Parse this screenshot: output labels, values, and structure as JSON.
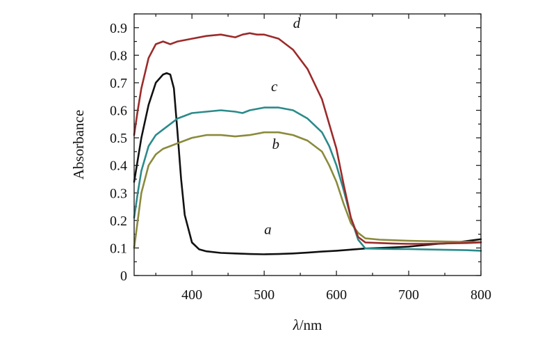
{
  "chart_data": {
    "type": "line",
    "xlabel_symbol": "λ",
    "xlabel_unit": "/nm",
    "ylabel": "Absorbance",
    "xlim": [
      320,
      800
    ],
    "ylim": [
      0,
      0.95
    ],
    "xticks": [
      400,
      500,
      600,
      700,
      800
    ],
    "xtick_labels": [
      "400",
      "500",
      "600",
      "700",
      "800"
    ],
    "yticks": [
      0,
      0.1,
      0.2,
      0.3,
      0.4,
      0.5,
      0.6,
      0.7,
      0.8,
      0.9
    ],
    "ytick_labels": [
      "0",
      "0.1",
      "0.2",
      "0.3",
      "0.4",
      "0.5",
      "0.6",
      "0.7",
      "0.8",
      "0.9"
    ],
    "series": [
      {
        "name": "a",
        "color": "#111111",
        "x": [
          320,
          330,
          340,
          350,
          360,
          365,
          370,
          375,
          380,
          385,
          390,
          400,
          410,
          420,
          440,
          460,
          480,
          500,
          520,
          540,
          560,
          580,
          600,
          620,
          640,
          660,
          680,
          700,
          720,
          740,
          760,
          780,
          800
        ],
        "y": [
          0.34,
          0.5,
          0.62,
          0.7,
          0.73,
          0.735,
          0.73,
          0.68,
          0.52,
          0.35,
          0.22,
          0.12,
          0.095,
          0.088,
          0.082,
          0.08,
          0.078,
          0.077,
          0.078,
          0.08,
          0.083,
          0.087,
          0.09,
          0.094,
          0.098,
          0.1,
          0.102,
          0.105,
          0.11,
          0.115,
          0.118,
          0.125,
          0.132
        ]
      },
      {
        "name": "b",
        "color": "#8a8a3c",
        "x": [
          320,
          325,
          330,
          340,
          350,
          360,
          370,
          380,
          400,
          420,
          440,
          460,
          480,
          500,
          520,
          540,
          560,
          580,
          590,
          600,
          610,
          620,
          630,
          640,
          660,
          680,
          700,
          720,
          740,
          760,
          780,
          800
        ],
        "y": [
          0.1,
          0.2,
          0.3,
          0.4,
          0.44,
          0.46,
          0.47,
          0.48,
          0.5,
          0.51,
          0.51,
          0.505,
          0.51,
          0.52,
          0.52,
          0.51,
          0.49,
          0.45,
          0.4,
          0.34,
          0.26,
          0.19,
          0.155,
          0.135,
          0.13,
          0.128,
          0.126,
          0.125,
          0.124,
          0.123,
          0.122,
          0.121
        ]
      },
      {
        "name": "c",
        "color": "#2b8a8a",
        "x": [
          320,
          325,
          330,
          340,
          350,
          360,
          370,
          380,
          400,
          420,
          440,
          460,
          470,
          480,
          500,
          520,
          540,
          560,
          580,
          590,
          600,
          610,
          620,
          630,
          640,
          660,
          680,
          700,
          720,
          740,
          760,
          780,
          800
        ],
        "y": [
          0.21,
          0.3,
          0.38,
          0.47,
          0.51,
          0.53,
          0.55,
          0.57,
          0.59,
          0.595,
          0.6,
          0.595,
          0.59,
          0.6,
          0.61,
          0.61,
          0.6,
          0.57,
          0.52,
          0.47,
          0.4,
          0.31,
          0.21,
          0.13,
          0.098,
          0.097,
          0.096,
          0.096,
          0.095,
          0.094,
          0.093,
          0.092,
          0.09
        ]
      },
      {
        "name": "d",
        "color": "#9c2a2a",
        "x": [
          320,
          325,
          330,
          340,
          350,
          360,
          370,
          380,
          390,
          400,
          420,
          440,
          460,
          470,
          480,
          490,
          500,
          520,
          540,
          560,
          580,
          590,
          600,
          610,
          620,
          630,
          640,
          660,
          680,
          700,
          720,
          740,
          760,
          780,
          800
        ],
        "y": [
          0.51,
          0.6,
          0.68,
          0.79,
          0.84,
          0.85,
          0.84,
          0.85,
          0.855,
          0.86,
          0.87,
          0.875,
          0.865,
          0.875,
          0.88,
          0.875,
          0.875,
          0.86,
          0.82,
          0.75,
          0.64,
          0.55,
          0.46,
          0.33,
          0.21,
          0.14,
          0.12,
          0.118,
          0.116,
          0.115,
          0.115,
          0.116,
          0.117,
          0.118,
          0.12
        ]
      }
    ],
    "annotations": [
      {
        "text": "a",
        "x": 505,
        "y": 0.15
      },
      {
        "text": "b",
        "x": 516,
        "y": 0.46
      },
      {
        "text": "c",
        "x": 514,
        "y": 0.67
      },
      {
        "text": "d",
        "x": 545,
        "y": 0.9
      }
    ]
  }
}
